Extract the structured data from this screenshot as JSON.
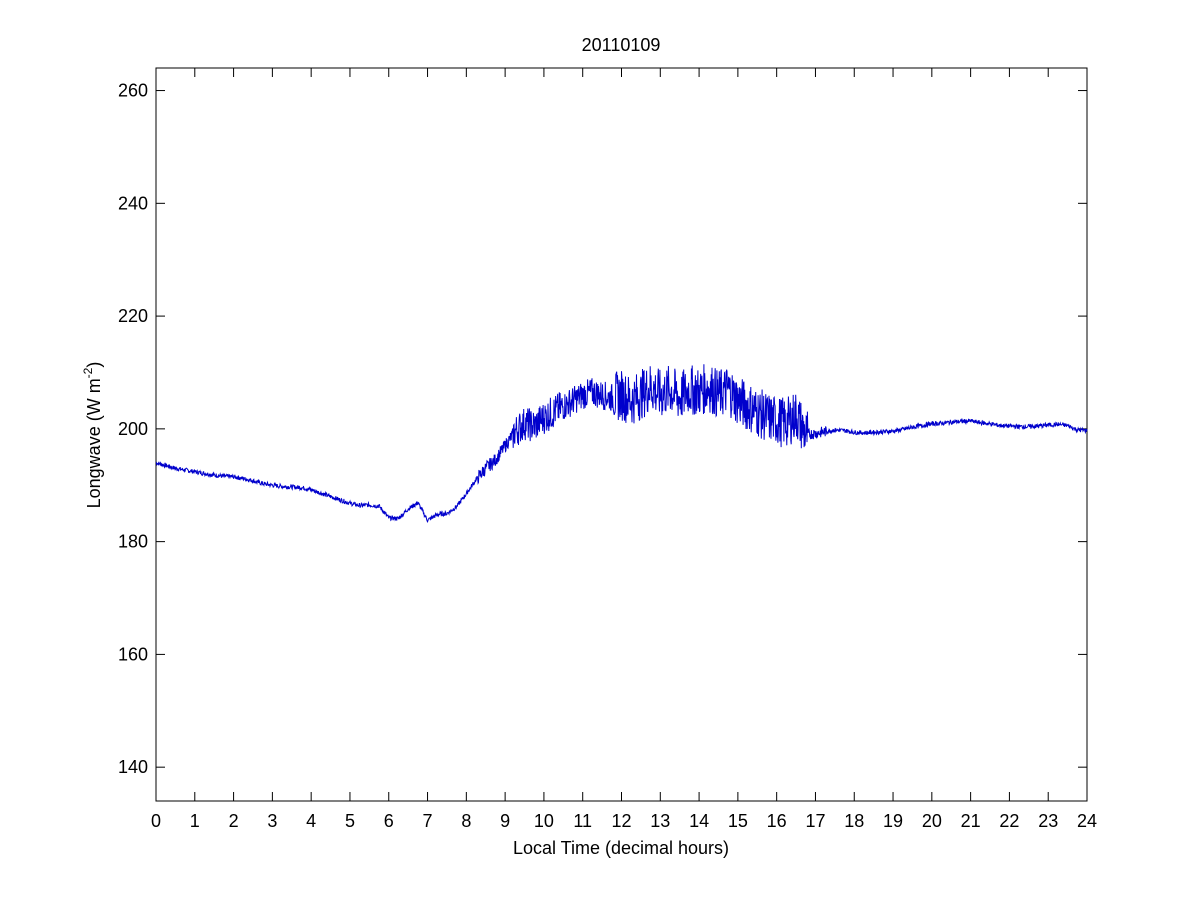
{
  "chart_data": {
    "type": "line",
    "title": "20110109",
    "xlabel": "Local Time (decimal hours)",
    "ylabel_main": "Longwave (W m",
    "ylabel_sup": "-2",
    "ylabel_close": ")",
    "xlim": [
      0,
      24
    ],
    "ylim": [
      134,
      264
    ],
    "xticks": [
      0,
      1,
      2,
      3,
      4,
      5,
      6,
      7,
      8,
      9,
      10,
      11,
      12,
      13,
      14,
      15,
      16,
      17,
      18,
      19,
      20,
      21,
      22,
      23,
      24
    ],
    "yticks": [
      140,
      160,
      180,
      200,
      220,
      240,
      260
    ],
    "grid": false,
    "line_color": "#0000cc",
    "series": [
      {
        "x": [
          0,
          0.25,
          0.5,
          0.75,
          1,
          1.25,
          1.5,
          1.75,
          2,
          2.25,
          2.5,
          2.75,
          3,
          3.25,
          3.5,
          3.75,
          4,
          4.25,
          4.5,
          4.75,
          5,
          5.25,
          5.5,
          5.75,
          6,
          6.25,
          6.5,
          6.75,
          7,
          7.25,
          7.5,
          7.75,
          8,
          8.25,
          8.5,
          8.75,
          9,
          9.25,
          9.5,
          9.75,
          10,
          10.25,
          10.5,
          10.75,
          11,
          11.25,
          11.5,
          11.75,
          12,
          12.25,
          12.5,
          12.75,
          13,
          13.25,
          13.5,
          13.75,
          14,
          14.25,
          14.5,
          14.75,
          15,
          15.25,
          15.5,
          15.75,
          16,
          16.25,
          16.5,
          16.75,
          17,
          17.25,
          17.5,
          17.75,
          18,
          18.25,
          18.5,
          18.75,
          19,
          19.25,
          19.5,
          19.75,
          20,
          20.25,
          20.5,
          20.75,
          21,
          21.25,
          21.5,
          21.75,
          22,
          22.25,
          22.5,
          22.75,
          23,
          23.25,
          23.5,
          23.75,
          24
        ],
        "y": [
          194,
          193.5,
          193,
          192.7,
          192.4,
          192.1,
          191.8,
          191.6,
          191.5,
          191.2,
          190.8,
          190.3,
          190,
          189.8,
          189.7,
          189.6,
          189.2,
          188.6,
          188,
          187.4,
          186.8,
          186.4,
          186.5,
          186.3,
          184.2,
          184.1,
          185.8,
          186.9,
          183.8,
          184.8,
          185,
          186.2,
          188.5,
          191,
          193,
          194.5,
          197,
          199.5,
          201,
          200.5,
          202,
          203,
          204,
          205,
          206,
          206.5,
          206,
          205.5,
          206,
          205,
          206,
          207.5,
          206,
          207,
          205.5,
          207,
          206.5,
          207.5,
          206,
          207,
          205,
          204,
          203,
          202,
          201.5,
          201,
          202.5,
          199,
          199.2,
          199.5,
          199.8,
          199.7,
          199.4,
          199.3,
          199.4,
          199.5,
          199.6,
          199.9,
          200.3,
          200.6,
          200.9,
          201,
          201.2,
          201.3,
          201.4,
          201.1,
          200.9,
          200.6,
          200.5,
          200.4,
          200.4,
          200.5,
          200.7,
          200.8,
          200.6,
          199.8,
          199.7
        ]
      }
    ]
  }
}
